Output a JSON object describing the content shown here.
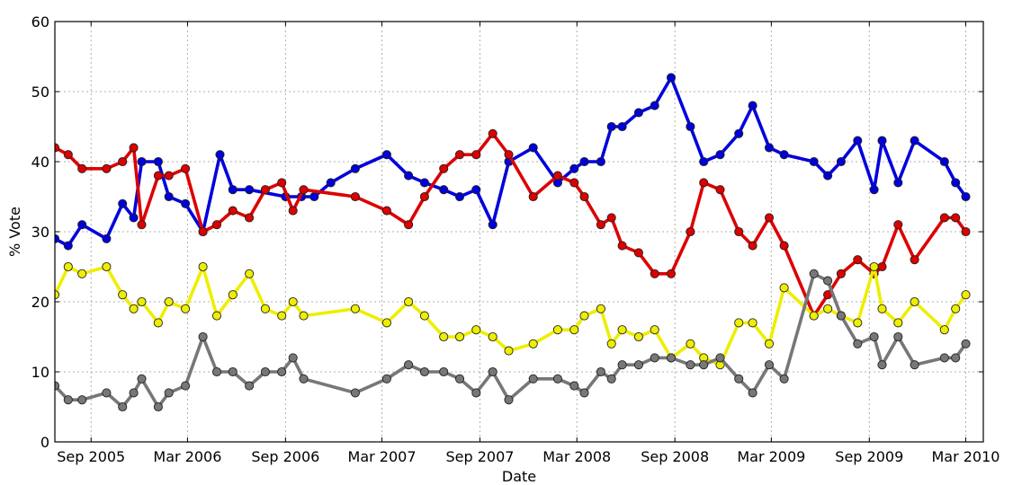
{
  "chart_data": {
    "type": "line",
    "xlabel": "Date",
    "ylabel": "% Vote",
    "ylim": [
      0,
      60
    ],
    "xlim": [
      "2005-06-25",
      "2010-04-03"
    ],
    "y_ticks": [
      0,
      10,
      20,
      30,
      40,
      50,
      60
    ],
    "x_ticks": [
      {
        "label": "Sep 2005",
        "date": "2005-09-01"
      },
      {
        "label": "Mar 2006",
        "date": "2006-03-01"
      },
      {
        "label": "Sep 2006",
        "date": "2006-09-01"
      },
      {
        "label": "Mar 2007",
        "date": "2007-03-01"
      },
      {
        "label": "Sep 2007",
        "date": "2007-09-01"
      },
      {
        "label": "Mar 2008",
        "date": "2008-03-01"
      },
      {
        "label": "Sep 2008",
        "date": "2008-09-01"
      },
      {
        "label": "Mar 2009",
        "date": "2009-03-01"
      },
      {
        "label": "Sep 2009",
        "date": "2009-09-01"
      },
      {
        "label": "Mar 2010",
        "date": "2010-03-01"
      }
    ],
    "grid": true,
    "series": [
      {
        "color": "#0000dd",
        "points": [
          [
            "2005-06-25",
            29
          ],
          [
            "2005-07-20",
            28
          ],
          [
            "2005-08-15",
            31
          ],
          [
            "2005-09-30",
            29
          ],
          [
            "2005-10-30",
            34
          ],
          [
            "2005-11-20",
            32
          ],
          [
            "2005-12-05",
            40
          ],
          [
            "2006-01-05",
            40
          ],
          [
            "2006-01-25",
            35
          ],
          [
            "2006-02-25",
            34
          ],
          [
            "2006-03-30",
            30
          ],
          [
            "2006-05-01",
            41
          ],
          [
            "2006-05-25",
            36
          ],
          [
            "2006-06-25",
            36
          ],
          [
            "2006-09-01",
            35
          ],
          [
            "2006-10-01",
            35
          ],
          [
            "2006-10-25",
            35
          ],
          [
            "2006-11-25",
            37
          ],
          [
            "2007-01-10",
            39
          ],
          [
            "2007-03-10",
            41
          ],
          [
            "2007-04-20",
            38
          ],
          [
            "2007-05-20",
            37
          ],
          [
            "2007-06-25",
            36
          ],
          [
            "2007-07-25",
            35
          ],
          [
            "2007-08-25",
            36
          ],
          [
            "2007-09-25",
            31
          ],
          [
            "2007-10-25",
            40
          ],
          [
            "2007-12-10",
            42
          ],
          [
            "2008-01-25",
            37
          ],
          [
            "2008-02-25",
            39
          ],
          [
            "2008-03-15",
            40
          ],
          [
            "2008-04-15",
            40
          ],
          [
            "2008-05-05",
            45
          ],
          [
            "2008-05-25",
            45
          ],
          [
            "2008-06-25",
            47
          ],
          [
            "2008-07-25",
            48
          ],
          [
            "2008-08-25",
            52
          ],
          [
            "2008-09-30",
            45
          ],
          [
            "2008-10-25",
            40
          ],
          [
            "2008-11-25",
            41
          ],
          [
            "2008-12-30",
            44
          ],
          [
            "2009-01-25",
            48
          ],
          [
            "2009-02-25",
            42
          ],
          [
            "2009-03-25",
            41
          ],
          [
            "2009-05-20",
            40
          ],
          [
            "2009-06-15",
            38
          ],
          [
            "2009-07-10",
            40
          ],
          [
            "2009-08-10",
            43
          ],
          [
            "2009-09-10",
            36
          ],
          [
            "2009-09-25",
            43
          ],
          [
            "2009-10-25",
            37
          ],
          [
            "2009-11-25",
            43
          ],
          [
            "2010-01-20",
            40
          ],
          [
            "2010-02-10",
            37
          ],
          [
            "2010-03-01",
            35
          ]
        ]
      },
      {
        "color": "#dd0000",
        "points": [
          [
            "2005-06-25",
            42
          ],
          [
            "2005-07-20",
            41
          ],
          [
            "2005-08-15",
            39
          ],
          [
            "2005-09-30",
            39
          ],
          [
            "2005-10-30",
            40
          ],
          [
            "2005-11-20",
            42
          ],
          [
            "2005-12-05",
            31
          ],
          [
            "2006-01-05",
            38
          ],
          [
            "2006-01-25",
            38
          ],
          [
            "2006-02-25",
            39
          ],
          [
            "2006-03-30",
            30
          ],
          [
            "2006-04-25",
            31
          ],
          [
            "2006-05-25",
            33
          ],
          [
            "2006-06-25",
            32
          ],
          [
            "2006-07-25",
            36
          ],
          [
            "2006-08-25",
            37
          ],
          [
            "2006-09-15",
            33
          ],
          [
            "2006-10-05",
            36
          ],
          [
            "2007-01-10",
            35
          ],
          [
            "2007-03-10",
            33
          ],
          [
            "2007-04-20",
            31
          ],
          [
            "2007-05-20",
            35
          ],
          [
            "2007-06-25",
            39
          ],
          [
            "2007-07-25",
            41
          ],
          [
            "2007-08-25",
            41
          ],
          [
            "2007-09-25",
            44
          ],
          [
            "2007-10-25",
            41
          ],
          [
            "2007-12-10",
            35
          ],
          [
            "2008-01-25",
            38
          ],
          [
            "2008-02-25",
            37
          ],
          [
            "2008-03-15",
            35
          ],
          [
            "2008-04-15",
            31
          ],
          [
            "2008-05-05",
            32
          ],
          [
            "2008-05-25",
            28
          ],
          [
            "2008-06-25",
            27
          ],
          [
            "2008-07-25",
            24
          ],
          [
            "2008-08-25",
            24
          ],
          [
            "2008-09-30",
            30
          ],
          [
            "2008-10-25",
            37
          ],
          [
            "2008-11-25",
            36
          ],
          [
            "2008-12-30",
            30
          ],
          [
            "2009-01-25",
            28
          ],
          [
            "2009-02-25",
            32
          ],
          [
            "2009-03-25",
            28
          ],
          [
            "2009-05-20",
            18
          ],
          [
            "2009-06-15",
            21
          ],
          [
            "2009-07-10",
            24
          ],
          [
            "2009-08-10",
            26
          ],
          [
            "2009-09-10",
            24
          ],
          [
            "2009-09-25",
            25
          ],
          [
            "2009-10-25",
            31
          ],
          [
            "2009-11-25",
            26
          ],
          [
            "2010-01-20",
            32
          ],
          [
            "2010-02-10",
            32
          ],
          [
            "2010-03-01",
            30
          ]
        ]
      },
      {
        "color": "#eeee00",
        "points": [
          [
            "2005-06-25",
            21
          ],
          [
            "2005-07-20",
            25
          ],
          [
            "2005-08-15",
            24
          ],
          [
            "2005-09-30",
            25
          ],
          [
            "2005-10-30",
            21
          ],
          [
            "2005-11-20",
            19
          ],
          [
            "2005-12-05",
            20
          ],
          [
            "2006-01-05",
            17
          ],
          [
            "2006-01-25",
            20
          ],
          [
            "2006-02-25",
            19
          ],
          [
            "2006-03-30",
            25
          ],
          [
            "2006-04-25",
            18
          ],
          [
            "2006-05-25",
            21
          ],
          [
            "2006-06-25",
            24
          ],
          [
            "2006-07-25",
            19
          ],
          [
            "2006-08-25",
            18
          ],
          [
            "2006-09-15",
            20
          ],
          [
            "2006-10-05",
            18
          ],
          [
            "2007-01-10",
            19
          ],
          [
            "2007-03-10",
            17
          ],
          [
            "2007-04-20",
            20
          ],
          [
            "2007-05-20",
            18
          ],
          [
            "2007-06-25",
            15
          ],
          [
            "2007-07-25",
            15
          ],
          [
            "2007-08-25",
            16
          ],
          [
            "2007-09-25",
            15
          ],
          [
            "2007-10-25",
            13
          ],
          [
            "2007-12-10",
            14
          ],
          [
            "2008-01-25",
            16
          ],
          [
            "2008-02-25",
            16
          ],
          [
            "2008-03-15",
            18
          ],
          [
            "2008-04-15",
            19
          ],
          [
            "2008-05-05",
            14
          ],
          [
            "2008-05-25",
            16
          ],
          [
            "2008-06-25",
            15
          ],
          [
            "2008-07-25",
            16
          ],
          [
            "2008-08-25",
            12
          ],
          [
            "2008-09-30",
            14
          ],
          [
            "2008-10-25",
            12
          ],
          [
            "2008-11-25",
            11
          ],
          [
            "2008-12-30",
            17
          ],
          [
            "2009-01-25",
            17
          ],
          [
            "2009-02-25",
            14
          ],
          [
            "2009-03-25",
            22
          ],
          [
            "2009-05-20",
            18
          ],
          [
            "2009-06-15",
            19
          ],
          [
            "2009-07-10",
            18
          ],
          [
            "2009-08-10",
            17
          ],
          [
            "2009-09-10",
            25
          ],
          [
            "2009-09-25",
            19
          ],
          [
            "2009-10-25",
            17
          ],
          [
            "2009-11-25",
            20
          ],
          [
            "2010-01-20",
            16
          ],
          [
            "2010-02-10",
            19
          ],
          [
            "2010-03-01",
            21
          ]
        ]
      },
      {
        "color": "#777777",
        "points": [
          [
            "2005-06-25",
            8
          ],
          [
            "2005-07-20",
            6
          ],
          [
            "2005-08-15",
            6
          ],
          [
            "2005-09-30",
            7
          ],
          [
            "2005-10-30",
            5
          ],
          [
            "2005-11-20",
            7
          ],
          [
            "2005-12-05",
            9
          ],
          [
            "2006-01-05",
            5
          ],
          [
            "2006-01-25",
            7
          ],
          [
            "2006-02-25",
            8
          ],
          [
            "2006-03-30",
            15
          ],
          [
            "2006-04-25",
            10
          ],
          [
            "2006-05-25",
            10
          ],
          [
            "2006-06-25",
            8
          ],
          [
            "2006-07-25",
            10
          ],
          [
            "2006-08-25",
            10
          ],
          [
            "2006-09-15",
            12
          ],
          [
            "2006-10-05",
            9
          ],
          [
            "2007-01-10",
            7
          ],
          [
            "2007-03-10",
            9
          ],
          [
            "2007-04-20",
            11
          ],
          [
            "2007-05-20",
            10
          ],
          [
            "2007-06-25",
            10
          ],
          [
            "2007-07-25",
            9
          ],
          [
            "2007-08-25",
            7
          ],
          [
            "2007-09-25",
            10
          ],
          [
            "2007-10-25",
            6
          ],
          [
            "2007-12-10",
            9
          ],
          [
            "2008-01-25",
            9
          ],
          [
            "2008-02-25",
            8
          ],
          [
            "2008-03-15",
            7
          ],
          [
            "2008-04-15",
            10
          ],
          [
            "2008-05-05",
            9
          ],
          [
            "2008-05-25",
            11
          ],
          [
            "2008-06-25",
            11
          ],
          [
            "2008-07-25",
            12
          ],
          [
            "2008-08-25",
            12
          ],
          [
            "2008-09-30",
            11
          ],
          [
            "2008-10-25",
            11
          ],
          [
            "2008-11-25",
            12
          ],
          [
            "2008-12-30",
            9
          ],
          [
            "2009-01-25",
            7
          ],
          [
            "2009-02-25",
            11
          ],
          [
            "2009-03-25",
            9
          ],
          [
            "2009-05-20",
            24
          ],
          [
            "2009-06-15",
            23
          ],
          [
            "2009-07-10",
            18
          ],
          [
            "2009-08-10",
            14
          ],
          [
            "2009-09-10",
            15
          ],
          [
            "2009-09-25",
            11
          ],
          [
            "2009-10-25",
            15
          ],
          [
            "2009-11-25",
            11
          ],
          [
            "2010-01-20",
            12
          ],
          [
            "2010-02-10",
            12
          ],
          [
            "2010-03-01",
            14
          ]
        ]
      }
    ]
  }
}
